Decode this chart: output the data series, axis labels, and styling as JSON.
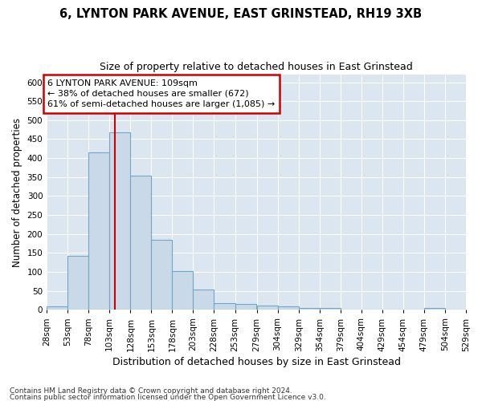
{
  "title": "6, LYNTON PARK AVENUE, EAST GRINSTEAD, RH19 3XB",
  "subtitle": "Size of property relative to detached houses in East Grinstead",
  "xlabel": "Distribution of detached houses by size in East Grinstead",
  "ylabel": "Number of detached properties",
  "footnote1": "Contains HM Land Registry data © Crown copyright and database right 2024.",
  "footnote2": "Contains public sector information licensed under the Open Government Licence v3.0.",
  "bins": [
    28,
    53,
    78,
    103,
    128,
    153,
    178,
    203,
    228,
    253,
    279,
    304,
    329,
    354,
    379,
    404,
    429,
    454,
    479,
    504,
    529
  ],
  "bar_labels": [
    "28sqm",
    "53sqm",
    "78sqm",
    "103sqm",
    "128sqm",
    "153sqm",
    "178sqm",
    "203sqm",
    "228sqm",
    "253sqm",
    "279sqm",
    "304sqm",
    "329sqm",
    "354sqm",
    "379sqm",
    "404sqm",
    "429sqm",
    "454sqm",
    "479sqm",
    "504sqm",
    "529sqm"
  ],
  "counts": [
    10,
    143,
    415,
    467,
    353,
    185,
    103,
    54,
    18,
    15,
    12,
    10,
    6,
    5,
    0,
    0,
    0,
    0,
    5,
    0
  ],
  "bar_color": "#c9d9e8",
  "bar_edge_color": "#6fa8c9",
  "ref_line_x": 109,
  "annotation_line1": "6 LYNTON PARK AVENUE: 109sqm",
  "annotation_line2": "← 38% of detached houses are smaller (672)",
  "annotation_line3": "61% of semi-detached houses are larger (1,085) →",
  "annotation_box_color": "#ffffff",
  "annotation_box_edge_color": "#cc0000",
  "ref_line_color": "#cc0000",
  "ylim": [
    0,
    620
  ],
  "yticks": [
    0,
    50,
    100,
    150,
    200,
    250,
    300,
    350,
    400,
    450,
    500,
    550,
    600
  ],
  "background_color": "#dce6f0",
  "figure_color": "#ffffff",
  "grid_color": "#ffffff",
  "title_fontsize": 10.5,
  "subtitle_fontsize": 9,
  "ylabel_fontsize": 8.5,
  "xlabel_fontsize": 9,
  "tick_fontsize": 7.5,
  "annotation_fontsize": 8,
  "footnote_fontsize": 6.5
}
